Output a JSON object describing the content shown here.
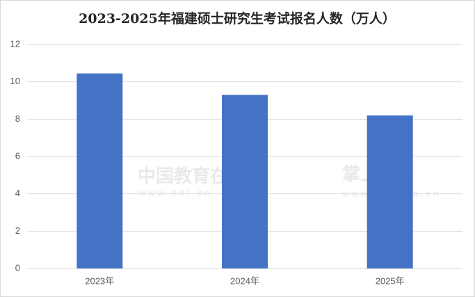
{
  "chart_data": {
    "type": "bar",
    "title": "2023-2025年福建硕士研究生考试报名人数（万人）",
    "categories": [
      "2023年",
      "2024年",
      "2025年"
    ],
    "values": [
      10.45,
      9.3,
      8.2
    ],
    "color": "#4472c4",
    "ylim": [
      0,
      12
    ],
    "yticks": [
      0,
      2,
      4,
      6,
      8,
      10,
      12
    ],
    "grid": true,
    "watermarks": [
      "中国教育在线",
      "www.eol.cn",
      "掌上考研",
      "www.kaoyan.cn"
    ]
  }
}
